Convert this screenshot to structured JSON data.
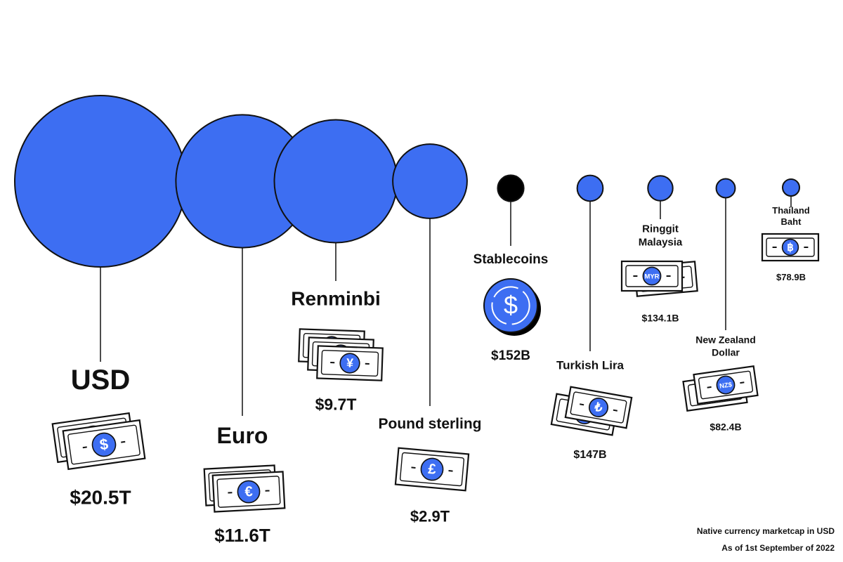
{
  "chart_data": {
    "type": "bubble",
    "categories": [
      "USD",
      "Euro",
      "Renminbi",
      "Pound sterling",
      "Stablecoins",
      "Turkish Lira",
      "Ringgit Malaysia",
      "New Zealand Dollar",
      "Thailand Baht"
    ],
    "values": [
      20500,
      11600,
      9700,
      2900,
      152,
      147,
      134.1,
      82.4,
      78.9
    ],
    "value_labels": [
      "$20.5T",
      "$11.6T",
      "$9.7T",
      "$2.9T",
      "$152B",
      "$147B",
      "$134.1B",
      "$82.4B",
      "$78.9B"
    ],
    "colors": [
      "#3d6ef2",
      "#3d6ef2",
      "#3d6ef2",
      "#3d6ef2",
      "#000000",
      "#3d6ef2",
      "#3d6ef2",
      "#3d6ef2",
      "#3d6ef2"
    ],
    "symbols": [
      "$",
      "€",
      "¥",
      "£",
      "$",
      "₺",
      "MYR",
      "NZ$",
      "฿"
    ],
    "annotations": [
      "Native currency marketcap in USD",
      "As of 1st September of 2022"
    ]
  }
}
